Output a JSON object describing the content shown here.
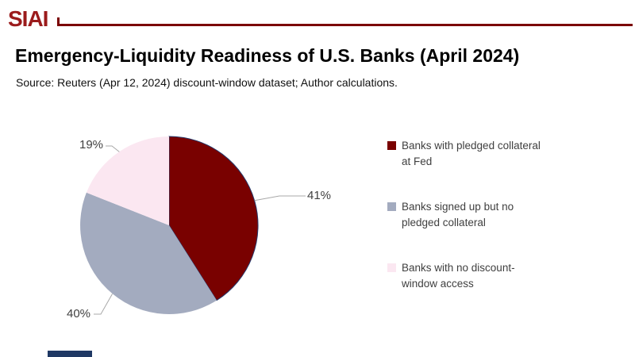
{
  "brand": {
    "logo_text": "SIAI",
    "logo_color": "#9B1B1C",
    "rule_color": "#7B0000",
    "footer_bar_color": "#1F3864"
  },
  "header": {
    "title": "Emergency-Liquidity Readiness of U.S. Banks (April 2024)",
    "source": "Source: Reuters (Apr 12, 2024) discount-window dataset; Author calculations."
  },
  "chart_data": {
    "type": "pie",
    "title": "Emergency-Liquidity Readiness of U.S. Banks (April 2024)",
    "source_note": "Source: Reuters (Apr 12, 2024) discount-window dataset; Author calculations.",
    "start_angle_deg": 0,
    "direction": "clockwise",
    "legend_position": "right",
    "slices": [
      {
        "label": "Banks with pledged collateral at Fed",
        "value_pct": 41,
        "data_label": "41%",
        "color": "#790100"
      },
      {
        "label": "Banks signed up but no pledged collateral",
        "value_pct": 40,
        "data_label": "40%",
        "color": "#A3ABBF"
      },
      {
        "label": "Banks with no discount-window access",
        "value_pct": 19,
        "data_label": "19%",
        "color": "#FBE7F1"
      }
    ],
    "outline_color": "#25396B",
    "leader_line_color": "#A8A8A8",
    "data_label_color": "#404040"
  },
  "legend": {
    "text_color": "#3F3F3F",
    "items": [
      {
        "line1": "Banks with pledged collateral",
        "line2": "at Fed"
      },
      {
        "line1": "Banks signed up but no",
        "line2": "pledged collateral"
      },
      {
        "line1": "Banks with no discount-",
        "line2": "window access"
      }
    ]
  }
}
